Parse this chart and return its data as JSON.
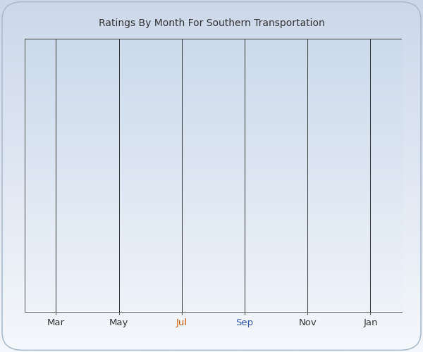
{
  "title": "Ratings By Month For Southern Transportation",
  "title_fontsize": 10,
  "title_color": "#333333",
  "x_tick_labels": [
    "Mar",
    "May",
    "Jul",
    "Sep",
    "Nov",
    "Jan"
  ],
  "x_tick_colors": [
    "#333333",
    "#333333",
    "#cc5500",
    "#3355aa",
    "#333333",
    "#333333"
  ],
  "x_tick_positions": [
    1,
    3,
    5,
    7,
    9,
    11
  ],
  "xlim": [
    0,
    12
  ],
  "ylim": [
    0,
    1
  ],
  "grid_color": "#333333",
  "grid_linewidth": 0.7,
  "bg_color_top": "#ccdaeb",
  "bg_color_bottom": "#eef3f9",
  "outer_bg_top": "#ccd8ea",
  "outer_bg_bottom": "#f5f8fc",
  "axis_linecolor": "#555555",
  "tick_fontsize": 9.5,
  "figsize": [
    6.0,
    5.0
  ],
  "dpi": 100
}
